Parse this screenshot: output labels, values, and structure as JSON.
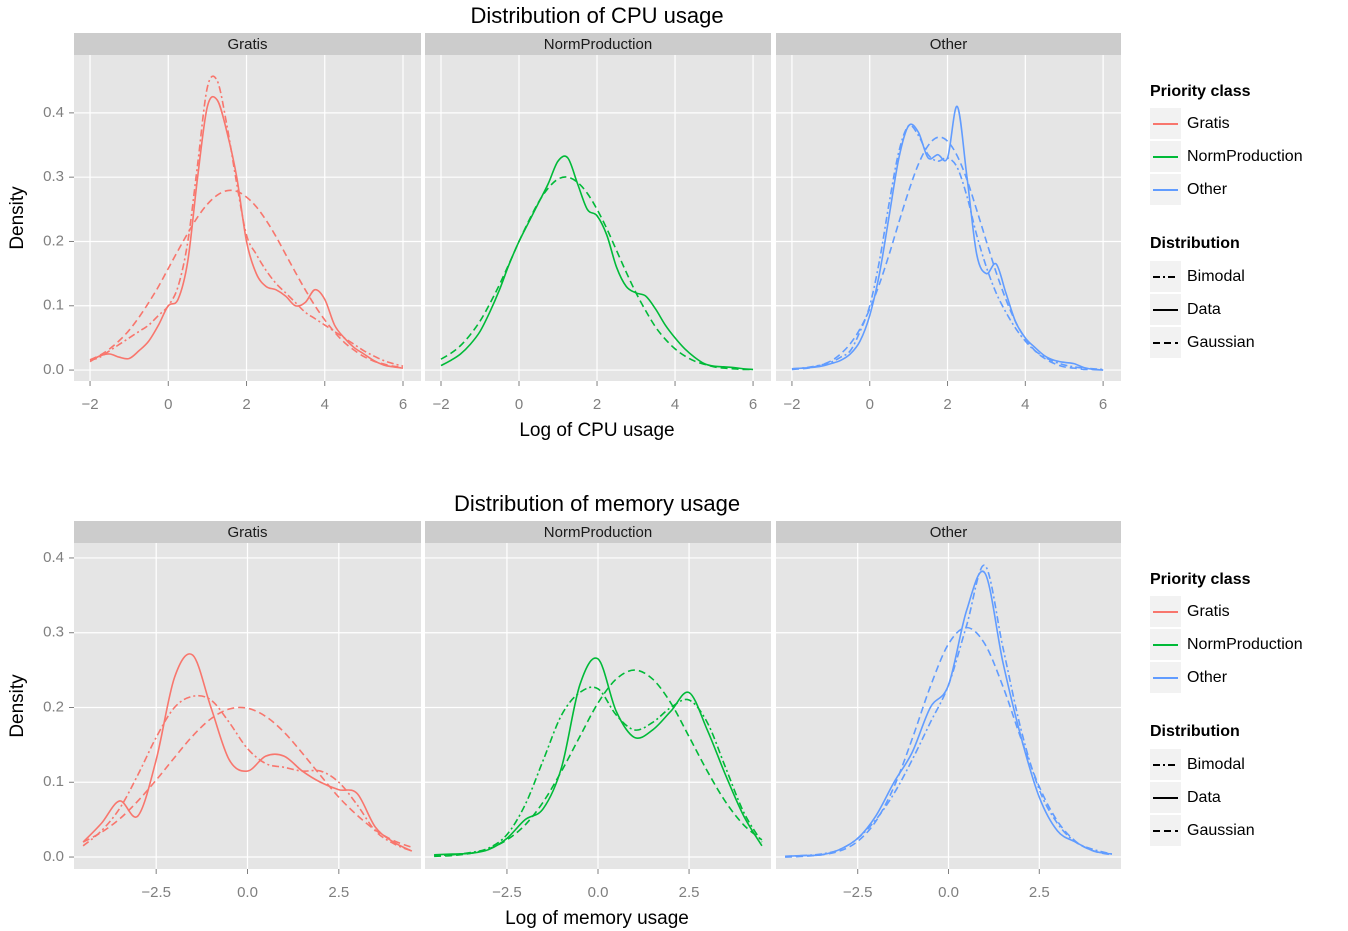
{
  "chart_data": [
    {
      "type": "line",
      "title": "Distribution of CPU usage",
      "x_label": "Log of CPU usage",
      "y_label": "Density",
      "color_legend_title": "Priority class",
      "linetype_legend_title": "Distribution",
      "linetypes": {
        "Bimodal": "7 3 2 3",
        "Data": "solid",
        "Gaussian": "7 4"
      },
      "xlim": [
        -2.41,
        6.46
      ],
      "xticks": [
        {
          "value": -2,
          "label": "−2"
        },
        0,
        2,
        4,
        6
      ],
      "ylim": [
        -0.017,
        0.49
      ],
      "yticks": [
        {
          "value": 0,
          "label": "0.0"
        },
        0.1,
        0.2,
        0.3,
        0.4
      ],
      "grid": true,
      "x": [
        -2,
        -1.75,
        -1.5,
        -1.25,
        -1,
        -0.75,
        -0.5,
        -0.25,
        0,
        0.25,
        0.5,
        0.75,
        1,
        1.25,
        1.5,
        1.75,
        2,
        2.25,
        2.5,
        2.75,
        3,
        3.25,
        3.5,
        3.75,
        4,
        4.25,
        4.5,
        4.75,
        5,
        5.25,
        5.5,
        5.75,
        6
      ],
      "panels": [
        {
          "name": "Gratis",
          "color": "#F8766D",
          "series": [
            {
              "name": "Bimodal",
              "values": [
                0.015,
                0.02,
                0.03,
                0.04,
                0.05,
                0.06,
                0.07,
                0.085,
                0.1,
                0.13,
                0.2,
                0.32,
                0.44,
                0.45,
                0.38,
                0.29,
                0.21,
                0.18,
                0.155,
                0.135,
                0.12,
                0.105,
                0.09,
                0.08,
                0.07,
                0.06,
                0.05,
                0.04,
                0.03,
                0.022,
                0.015,
                0.01,
                0.006
              ]
            },
            {
              "name": "Data",
              "values": [
                0.013,
                0.022,
                0.025,
                0.02,
                0.018,
                0.03,
                0.045,
                0.07,
                0.1,
                0.11,
                0.17,
                0.3,
                0.41,
                0.42,
                0.37,
                0.3,
                0.2,
                0.15,
                0.13,
                0.125,
                0.115,
                0.1,
                0.105,
                0.125,
                0.11,
                0.07,
                0.05,
                0.035,
                0.025,
                0.015,
                0.008,
                0.005,
                0.003
              ]
            },
            {
              "name": "Gaussian",
              "values": [
                0.016,
                0.023,
                0.033,
                0.046,
                0.062,
                0.082,
                0.105,
                0.13,
                0.158,
                0.186,
                0.213,
                0.238,
                0.258,
                0.272,
                0.279,
                0.278,
                0.269,
                0.254,
                0.233,
                0.208,
                0.18,
                0.152,
                0.125,
                0.1,
                0.078,
                0.059,
                0.043,
                0.031,
                0.021,
                0.014,
                0.0095,
                0.006,
                0.004
              ]
            }
          ]
        },
        {
          "name": "NormProduction",
          "color": "#00BA38",
          "series": [
            {
              "name": "Data",
              "values": [
                0.007,
                0.015,
                0.025,
                0.04,
                0.06,
                0.09,
                0.125,
                0.165,
                0.2,
                0.23,
                0.26,
                0.29,
                0.325,
                0.33,
                0.29,
                0.25,
                0.24,
                0.21,
                0.16,
                0.13,
                0.12,
                0.115,
                0.095,
                0.07,
                0.05,
                0.033,
                0.02,
                0.01,
                0.006,
                0.005,
                0.004,
                0.002,
                0.001
              ]
            },
            {
              "name": "Gaussian",
              "values": [
                0.017,
                0.026,
                0.038,
                0.055,
                0.076,
                0.103,
                0.133,
                0.166,
                0.2,
                0.232,
                0.261,
                0.283,
                0.297,
                0.3,
                0.292,
                0.275,
                0.25,
                0.22,
                0.186,
                0.152,
                0.12,
                0.092,
                0.067,
                0.048,
                0.033,
                0.022,
                0.014,
                0.009,
                0.005,
                0.003,
                0.002,
                0.001,
                0.001
              ]
            }
          ]
        },
        {
          "name": "Other",
          "color": "#619CFF",
          "series": [
            {
              "name": "Bimodal",
              "values": [
                0.002,
                0.003,
                0.005,
                0.008,
                0.012,
                0.02,
                0.03,
                0.06,
                0.1,
                0.17,
                0.26,
                0.34,
                0.38,
                0.365,
                0.335,
                0.325,
                0.33,
                0.315,
                0.27,
                0.21,
                0.16,
                0.12,
                0.09,
                0.065,
                0.045,
                0.03,
                0.02,
                0.013,
                0.008,
                0.005,
                0.003,
                0.002,
                0.001
              ]
            },
            {
              "name": "Data",
              "values": [
                0.002,
                0.003,
                0.004,
                0.006,
                0.01,
                0.015,
                0.025,
                0.045,
                0.085,
                0.15,
                0.24,
                0.33,
                0.38,
                0.37,
                0.33,
                0.335,
                0.33,
                0.41,
                0.3,
                0.18,
                0.15,
                0.165,
                0.12,
                0.075,
                0.05,
                0.035,
                0.022,
                0.015,
                0.012,
                0.01,
                0.004,
                0.001,
                0.0
              ]
            },
            {
              "name": "Gaussian",
              "values": [
                0.001,
                0.002,
                0.004,
                0.008,
                0.014,
                0.025,
                0.041,
                0.064,
                0.095,
                0.134,
                0.18,
                0.23,
                0.278,
                0.32,
                0.349,
                0.362,
                0.356,
                0.333,
                0.296,
                0.249,
                0.2,
                0.152,
                0.11,
                0.075,
                0.049,
                0.03,
                0.018,
                0.01,
                0.005,
                0.003,
                0.001,
                0.001,
                0.0
              ]
            }
          ]
        }
      ]
    },
    {
      "type": "line",
      "title": "Distribution of memory usage",
      "x_label": "Log of memory usage",
      "y_label": "Density",
      "color_legend_title": "Priority class",
      "linetype_legend_title": "Distribution",
      "linetypes": {
        "Bimodal": "7 3 2 3",
        "Data": "solid",
        "Gaussian": "7 4"
      },
      "xlim": [
        -4.75,
        4.75
      ],
      "xticks": [
        {
          "value": -2.5,
          "label": "−2.5"
        },
        {
          "value": 0,
          "label": "0.0"
        },
        2.5
      ],
      "ylim": [
        -0.016,
        0.42
      ],
      "yticks": [
        {
          "value": 0,
          "label": "0.0"
        },
        0.1,
        0.2,
        0.3,
        0.4
      ],
      "grid": true,
      "x": [
        -4.5,
        -4,
        -3.5,
        -3,
        -2.5,
        -2,
        -1.5,
        -1,
        -0.5,
        0,
        0.5,
        1,
        1.5,
        2,
        2.5,
        3,
        3.5,
        4,
        4.5
      ],
      "panels": [
        {
          "name": "Gratis",
          "color": "#F8766D",
          "series": [
            {
              "name": "Bimodal",
              "values": [
                0.015,
                0.035,
                0.065,
                0.11,
                0.16,
                0.2,
                0.215,
                0.21,
                0.18,
                0.145,
                0.125,
                0.12,
                0.115,
                0.115,
                0.1,
                0.07,
                0.035,
                0.018,
                0.008
              ]
            },
            {
              "name": "Data",
              "values": [
                0.02,
                0.045,
                0.075,
                0.055,
                0.13,
                0.24,
                0.27,
                0.2,
                0.13,
                0.115,
                0.135,
                0.135,
                0.115,
                0.1,
                0.09,
                0.085,
                0.04,
                0.02,
                0.008
              ]
            },
            {
              "name": "Gaussian",
              "values": [
                0.02,
                0.033,
                0.051,
                0.075,
                0.103,
                0.133,
                0.162,
                0.185,
                0.198,
                0.199,
                0.188,
                0.167,
                0.139,
                0.109,
                0.08,
                0.056,
                0.036,
                0.022,
                0.013
              ]
            }
          ]
        },
        {
          "name": "NormProduction",
          "color": "#00BA38",
          "series": [
            {
              "name": "Bimodal",
              "values": [
                0.002,
                0.003,
                0.006,
                0.012,
                0.03,
                0.07,
                0.13,
                0.19,
                0.22,
                0.225,
                0.19,
                0.17,
                0.18,
                0.2,
                0.21,
                0.18,
                0.12,
                0.06,
                0.02
              ]
            },
            {
              "name": "Data",
              "values": [
                0.003,
                0.004,
                0.005,
                0.01,
                0.025,
                0.05,
                0.065,
                0.12,
                0.23,
                0.265,
                0.195,
                0.16,
                0.17,
                0.195,
                0.22,
                0.17,
                0.11,
                0.055,
                0.015
              ]
            },
            {
              "name": "Gaussian",
              "values": [
                0.001,
                0.002,
                0.005,
                0.011,
                0.023,
                0.043,
                0.074,
                0.115,
                0.161,
                0.206,
                0.238,
                0.25,
                0.238,
                0.206,
                0.161,
                0.115,
                0.074,
                0.043,
                0.023
              ]
            }
          ]
        },
        {
          "name": "Other",
          "color": "#619CFF",
          "series": [
            {
              "name": "Bimodal",
              "values": [
                0.001,
                0.002,
                0.004,
                0.01,
                0.025,
                0.05,
                0.085,
                0.13,
                0.18,
                0.23,
                0.31,
                0.39,
                0.28,
                0.17,
                0.09,
                0.045,
                0.02,
                0.01,
                0.004
              ]
            },
            {
              "name": "Data",
              "values": [
                0.001,
                0.002,
                0.003,
                0.01,
                0.025,
                0.055,
                0.1,
                0.14,
                0.2,
                0.23,
                0.33,
                0.38,
                0.26,
                0.16,
                0.08,
                0.035,
                0.02,
                0.008,
                0.004
              ]
            },
            {
              "name": "Gaussian",
              "values": [
                0.0,
                0.001,
                0.003,
                0.008,
                0.021,
                0.048,
                0.094,
                0.158,
                0.228,
                0.285,
                0.307,
                0.285,
                0.228,
                0.158,
                0.094,
                0.048,
                0.021,
                0.008,
                0.003
              ]
            }
          ]
        }
      ]
    }
  ]
}
